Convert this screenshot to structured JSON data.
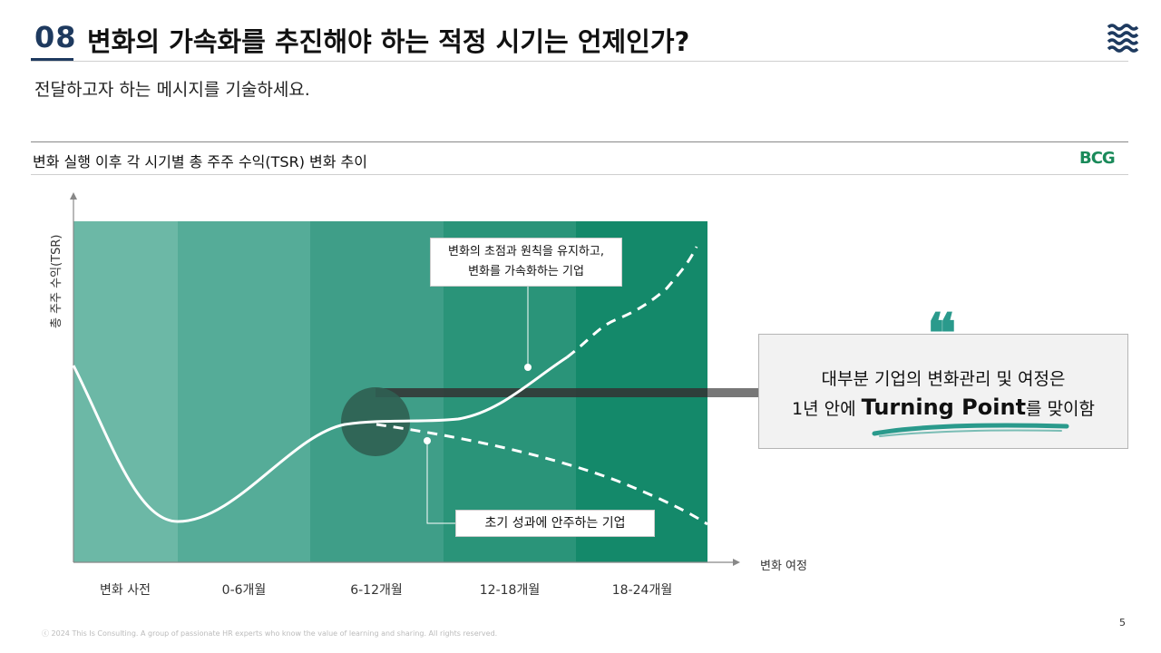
{
  "header": {
    "slide_number": "08",
    "title": "변화의 가속화를 추진해야 하는 적정 시기는 언제인가?",
    "subtitle": "전달하고자 하는 메시지를 기술하세요."
  },
  "chart_section": {
    "title": "변화 실행 이후 각 시기별 총 주주 수익(TSR) 변화 추이",
    "logo": "BCG"
  },
  "chart_data": {
    "type": "line",
    "y_axis_label": "총 주주 수익(TSR)",
    "x_axis_label": "변화 여정",
    "categories": [
      "변화 사전",
      "0-6개월",
      "6-12개월",
      "12-18개월",
      "18-24개월"
    ],
    "series": [
      {
        "style": "solid",
        "description": ""
      },
      {
        "name": "변화의 초점과 원칙을 유지하고, 변화를 가속화하는 기업",
        "style": "dashed"
      },
      {
        "name": "초기 성과에 안주하는 기업",
        "style": "dashed"
      }
    ],
    "colors": {
      "band1": "#6cb8a6",
      "band2": "#55ac98",
      "band3": "#3f9e88",
      "band4": "#2a9479",
      "band5": "#14896a",
      "line": "#ffffff",
      "turning_circle": "#2f5f52"
    }
  },
  "callouts": {
    "accelerate_line1": "변화의 초점과 원칙을 유지하고,",
    "accelerate_line2": "변화를 가속화하는 기업",
    "complacent": "초기 성과에 안주하는 기업"
  },
  "quote": {
    "mark": "❝",
    "line1": "대부분 기업의 변화관리 및 여정은",
    "line2_pre": "1년 안에 ",
    "line2_bold": "Turning Point",
    "line2_post": "를 맞이함",
    "accent_color": "#2a9a8c"
  },
  "footer": {
    "copyright": "ⓒ 2024 This Is Consulting. A group of passionate HR experts who know the value of learning and sharing. All rights reserved.",
    "page_number": "5"
  },
  "icons": {
    "menu": "waves-menu-icon"
  }
}
